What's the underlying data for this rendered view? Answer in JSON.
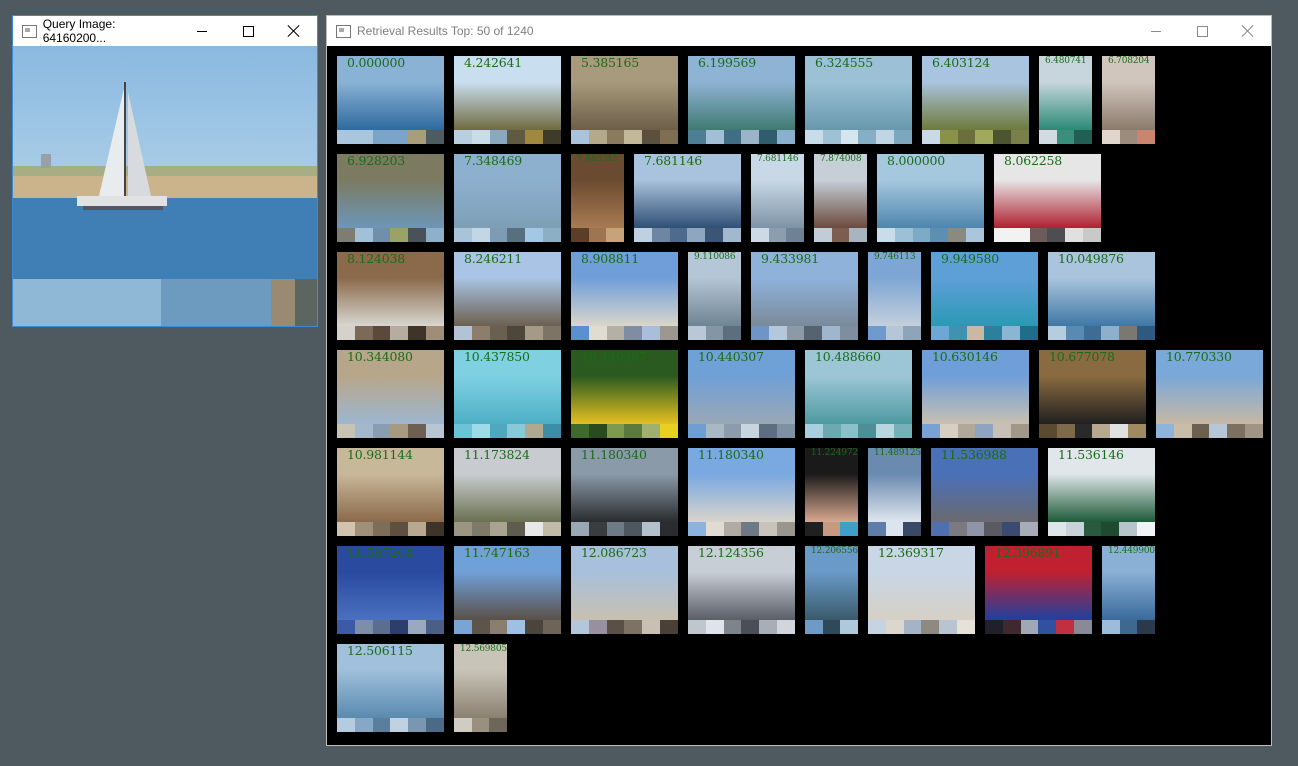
{
  "query_window": {
    "title": "Query Image: 64160200...",
    "palette": [
      "#8fb8d6",
      "#8fb8d6",
      "#8fb8d6",
      "#6d9bc0",
      "#6d9bc0",
      "#6d9bc0",
      "#9a8a72",
      "#5d6560"
    ]
  },
  "results_window": {
    "title": "Retrieval Results Top: 50 of 1240",
    "results": [
      {
        "score": "0.000000",
        "w": "wide",
        "colors": [
          "#8ab2d4",
          "#2e6aa0"
        ],
        "palette": [
          "#a9c6de",
          "#a9c6de",
          "#7aa5c9",
          "#7aa5c9",
          "#a89f7a",
          "#4d5b62"
        ]
      },
      {
        "score": "4.242641",
        "w": "wide",
        "colors": [
          "#c9dff0",
          "#6f6a40"
        ],
        "palette": [
          "#b7cfe0",
          "#c8dcea",
          "#89a9c1",
          "#5f5a42",
          "#a0883e",
          "#3e3b2a"
        ]
      },
      {
        "score": "5.385165",
        "w": "wide",
        "colors": [
          "#a89a7c",
          "#6c5e48"
        ],
        "palette": [
          "#a9c3da",
          "#b5a98c",
          "#8a7a5e",
          "#c4b89a",
          "#5b4f3d",
          "#7d6e54"
        ]
      },
      {
        "score": "6.199569",
        "w": "wide",
        "colors": [
          "#8fb3d4",
          "#3f7a72"
        ],
        "palette": [
          "#4d7e93",
          "#a2bfd6",
          "#3f6e85",
          "#9bb4c7",
          "#2f5d6e",
          "#8ab0d0"
        ]
      },
      {
        "score": "6.324555",
        "w": "wide",
        "colors": [
          "#9cc1d6",
          "#6898ad"
        ],
        "palette": [
          "#c8dde9",
          "#9fc1d5",
          "#d6e6ef",
          "#86aec6",
          "#c0d6e3",
          "#7da7bf"
        ]
      },
      {
        "score": "6.403124",
        "w": "wide",
        "colors": [
          "#a9c4de",
          "#6f7a3c"
        ],
        "palette": [
          "#c9d9e8",
          "#8a9148",
          "#6b6f3c",
          "#a1a95c",
          "#4d5530",
          "#7a804a"
        ]
      },
      {
        "score": "6.480741",
        "w": "narrow",
        "colors": [
          "#c7d6dc",
          "#2a8a77"
        ],
        "palette": [
          "#d0dce0",
          "#3a8f7c",
          "#215f55"
        ]
      },
      {
        "score": "6.708204",
        "w": "narrow",
        "colors": [
          "#d1c6bd",
          "#8a7a6c"
        ],
        "palette": [
          "#e0d6ce",
          "#9c8c7e",
          "#c9866d"
        ]
      },
      {
        "score": "6.928203",
        "w": "wide",
        "colors": [
          "#7c7a60",
          "#6d96b8"
        ],
        "palette": [
          "#7e7e70",
          "#a3c0d9",
          "#6f8fab",
          "#9aa268",
          "#4a5158",
          "#8fb0ca"
        ]
      },
      {
        "score": "7.348469",
        "w": "wide",
        "colors": [
          "#8eb0cf",
          "#7d9fb5"
        ],
        "palette": [
          "#a9c3d9",
          "#c2d6e5",
          "#7d9bb3",
          "#586f80",
          "#a3c7e4",
          "#8cafc6"
        ]
      },
      {
        "score": "7.483315",
        "w": "narrow",
        "colors": [
          "#6a4a30",
          "#a97a52"
        ],
        "palette": [
          "#5c3e28",
          "#9e7550",
          "#c7a37c"
        ]
      },
      {
        "score": "7.681146",
        "w": "wide",
        "colors": [
          "#a9c2dd",
          "#2f4f74"
        ],
        "palette": [
          "#bed0e2",
          "#6f86a2",
          "#4e6a8c",
          "#8fa6c1",
          "#3b5577",
          "#a3b8cf"
        ]
      },
      {
        "score": "7.681146",
        "w": "narrow",
        "colors": [
          "#c9d8e6",
          "#7d93a6"
        ],
        "palette": [
          "#ccd9e6",
          "#8c9eae",
          "#6d8294"
        ]
      },
      {
        "score": "7.874008",
        "w": "narrow",
        "colors": [
          "#c6cfd8",
          "#6b4a3e"
        ],
        "palette": [
          "#c0ccd6",
          "#7d5d4f",
          "#a8b5c0"
        ]
      },
      {
        "score": "8.000000",
        "w": "wide",
        "colors": [
          "#a6c8de",
          "#4e86ae"
        ],
        "palette": [
          "#c8dde9",
          "#9dc0d6",
          "#7daac6",
          "#5d8fb1",
          "#8a8a80",
          "#a9c6da"
        ]
      },
      {
        "score": "8.062258",
        "w": "wide",
        "colors": [
          "#e6e6e6",
          "#b02030"
        ],
        "palette": [
          "#f2f2f2",
          "#f2f2f2",
          "#6e5c5a",
          "#4e4e52",
          "#e0e0e0",
          "#c9c9c9"
        ]
      },
      {
        "score": "8.124038",
        "w": "wide",
        "colors": [
          "#8a6a4a",
          "#d8d6d0"
        ],
        "palette": [
          "#d5d2cc",
          "#7d6a56",
          "#5b4a3a",
          "#b6ada0",
          "#3e3429",
          "#9e8e78"
        ]
      },
      {
        "score": "8.246211",
        "w": "wide",
        "colors": [
          "#a9c4e4",
          "#6c6050"
        ],
        "palette": [
          "#b2c3d8",
          "#8c7e6a",
          "#6a604f",
          "#4d463c",
          "#a59a86",
          "#7d7466"
        ]
      },
      {
        "score": "8.908811",
        "w": "wide",
        "colors": [
          "#6f9ed9",
          "#dad6cc"
        ],
        "palette": [
          "#5b8fd0",
          "#e0dcd2",
          "#b5b0a6",
          "#7e8da4",
          "#a9bedc",
          "#9c9890"
        ]
      },
      {
        "score": "9.110086",
        "w": "narrow",
        "colors": [
          "#b5c6d6",
          "#6f8494"
        ],
        "palette": [
          "#b8c8d6",
          "#8396a6",
          "#5d6e7e"
        ]
      },
      {
        "score": "9.433981",
        "w": "wide",
        "colors": [
          "#8fb2db",
          "#7a8a9a"
        ],
        "palette": [
          "#6e94c8",
          "#b4c8dc",
          "#8c9aa8",
          "#556270",
          "#a0b6cc",
          "#7e8e9e"
        ]
      },
      {
        "score": "9.746113",
        "w": "narrow",
        "colors": [
          "#7ea6d4",
          "#c3cfdc"
        ],
        "palette": [
          "#6f9ad0",
          "#b6c6d8",
          "#8ea4b8"
        ]
      },
      {
        "score": "9.949580",
        "w": "wide",
        "colors": [
          "#5f9fd8",
          "#2a9ab4"
        ],
        "palette": [
          "#6ea6d6",
          "#3f93b0",
          "#c8b9a0",
          "#2d7f9e",
          "#8ab6d4",
          "#1f6d88"
        ]
      },
      {
        "score": "10.049876",
        "w": "wide",
        "colors": [
          "#a9c4dc",
          "#3f78a6"
        ],
        "palette": [
          "#b6cde0",
          "#5a8ab2",
          "#3e6c92",
          "#8fb0cc",
          "#7a7870",
          "#2e5a80"
        ]
      },
      {
        "score": "10.344080",
        "w": "wide",
        "colors": [
          "#b8a68a",
          "#9db6cf"
        ],
        "palette": [
          "#c9c3b5",
          "#a4b8cc",
          "#8a9eb2",
          "#a89a80",
          "#6d6050",
          "#b8c6d4"
        ]
      },
      {
        "score": "10.437850",
        "w": "wide",
        "colors": [
          "#7fd0e0",
          "#4eb0c6"
        ],
        "palette": [
          "#6cc3d6",
          "#9fdbe6",
          "#4ea9c0",
          "#88c8d8",
          "#b0a890",
          "#3a8ea6"
        ]
      },
      {
        "score": "10.440307",
        "w": "wide",
        "colors": [
          "#2a5a20",
          "#e6c020"
        ],
        "palette": [
          "#3e6a2e",
          "#2a4a20",
          "#7d9a50",
          "#5a7a3e",
          "#a0b070",
          "#e8d020"
        ]
      },
      {
        "score": "10.440307",
        "w": "wide",
        "colors": [
          "#6fa0d6",
          "#9aa8b6"
        ],
        "palette": [
          "#6f9ed4",
          "#aab8c6",
          "#8c9cac",
          "#c8d4e0",
          "#5d6e80",
          "#7e90a4"
        ]
      },
      {
        "score": "10.488660",
        "w": "wide",
        "colors": [
          "#9cc6d6",
          "#4e9aa0"
        ],
        "palette": [
          "#a9cedd",
          "#6aaab0",
          "#8ec0cc",
          "#4e8e96",
          "#b8d6e0",
          "#76b0b8"
        ]
      },
      {
        "score": "10.630146",
        "w": "wide",
        "colors": [
          "#6f9ed9",
          "#c8c0b0"
        ],
        "palette": [
          "#78a2d6",
          "#d6cfc2",
          "#b0a898",
          "#8ea4c0",
          "#c8c0b4",
          "#a09888"
        ]
      },
      {
        "score": "10.677078",
        "w": "wide",
        "colors": [
          "#8a6a40",
          "#202020"
        ],
        "palette": [
          "#5a4a30",
          "#7d6a4a",
          "#2a2a2a",
          "#b8a890",
          "#e0e0e0",
          "#a08a60"
        ]
      },
      {
        "score": "10.770330",
        "w": "wide",
        "colors": [
          "#7aa8d8",
          "#c6b8a4"
        ],
        "palette": [
          "#8eb4dc",
          "#c8bcaa",
          "#6d6050",
          "#b6c8d8",
          "#7e7060",
          "#a09484"
        ]
      },
      {
        "score": "10.981144",
        "w": "wide",
        "colors": [
          "#c8b89a",
          "#8a6a4a"
        ],
        "palette": [
          "#d0c4ae",
          "#a0907a",
          "#7d6e5a",
          "#5d5040",
          "#b8a890",
          "#3e3428"
        ]
      },
      {
        "score": "11.173824",
        "w": "wide",
        "colors": [
          "#c8ccd0",
          "#6a7050"
        ],
        "palette": [
          "#9a9682",
          "#7d7a68",
          "#a8a490",
          "#5e5c4e",
          "#e8e8e8",
          "#c0bca8"
        ]
      },
      {
        "score": "11.180340",
        "w": "wide",
        "colors": [
          "#8a9aa8",
          "#2a2c2e"
        ],
        "palette": [
          "#9aa8b4",
          "#3a3c40",
          "#6e7a86",
          "#4e5660",
          "#b4c0cc",
          "#2a2c30"
        ]
      },
      {
        "score": "11.180340",
        "w": "wide",
        "colors": [
          "#7aa8e0",
          "#d8d4cc"
        ],
        "palette": [
          "#8cb2e0",
          "#e0dcd4",
          "#b0aca4",
          "#6e7886",
          "#c8c4bc",
          "#9a968e"
        ]
      },
      {
        "score": "11.224972",
        "w": "narrow",
        "colors": [
          "#1a1a1a",
          "#d8a890"
        ],
        "palette": [
          "#202020",
          "#c89880",
          "#3ea0c8"
        ]
      },
      {
        "score": "11.489125",
        "w": "narrow",
        "colors": [
          "#6a8ab0",
          "#e0e6ee"
        ],
        "palette": [
          "#5d7ea8",
          "#dce4ee",
          "#3a4a66"
        ]
      },
      {
        "score": "11.536988",
        "w": "wide",
        "colors": [
          "#4a70b8",
          "#6a6a70"
        ],
        "palette": [
          "#4f6fb0",
          "#7a7a80",
          "#9094a8",
          "#5a5a62",
          "#3a4a70",
          "#a8acb8"
        ]
      },
      {
        "score": "11.536146",
        "w": "wide",
        "colors": [
          "#e0e6ea",
          "#1e5a38"
        ],
        "palette": [
          "#dfe6ea",
          "#c8d2d8",
          "#2a5a3e",
          "#1e4a30",
          "#b8c4cc",
          "#f0f4f6"
        ]
      },
      {
        "score": "11.587264",
        "w": "wide",
        "colors": [
          "#2a4aa0",
          "#4a70c0"
        ],
        "palette": [
          "#3c5aa8",
          "#7e8ea8",
          "#5a6e90",
          "#2e3e6a",
          "#9aa8c0",
          "#4a5e86"
        ]
      },
      {
        "score": "11.747163",
        "w": "wide",
        "colors": [
          "#6fa0d8",
          "#5a5048"
        ],
        "palette": [
          "#78a4d6",
          "#5d554c",
          "#8a7e70",
          "#9ec0e4",
          "#4a443c",
          "#6e6458"
        ]
      },
      {
        "score": "12.086723",
        "w": "wide",
        "colors": [
          "#a8c0dc",
          "#c8c0b0"
        ],
        "palette": [
          "#b4c6da",
          "#9890a0",
          "#5a5046",
          "#7e7264",
          "#c8c0b2",
          "#4a4038"
        ]
      },
      {
        "score": "12.124356",
        "w": "wide",
        "colors": [
          "#c8ced6",
          "#5a5e66"
        ],
        "palette": [
          "#c0c6ce",
          "#e0e4e8",
          "#7e848c",
          "#4a4e56",
          "#a8aeb6",
          "#d0d6dc"
        ]
      },
      {
        "score": "12.206556",
        "w": "narrow",
        "colors": [
          "#6a9ac8",
          "#3a5a6a"
        ],
        "palette": [
          "#6e9ac6",
          "#2e4a58",
          "#b0c8dc"
        ]
      },
      {
        "score": "12.369317",
        "w": "wide",
        "colors": [
          "#c8d6e6",
          "#d6d0c6"
        ],
        "palette": [
          "#c6d4e2",
          "#dcd6cc",
          "#a4b4c4",
          "#8e8a82",
          "#b8c4d0",
          "#e6e2da"
        ]
      },
      {
        "score": "12.396891",
        "w": "wide",
        "colors": [
          "#c02030",
          "#2040a0"
        ],
        "palette": [
          "#20202a",
          "#402830",
          "#a0a8b8",
          "#3050a0",
          "#c03040",
          "#8a8a96"
        ]
      },
      {
        "score": "12.449900",
        "w": "narrow",
        "colors": [
          "#8ab0d6",
          "#3a6a9a"
        ],
        "palette": [
          "#9cbcda",
          "#3e6890",
          "#2a3a4a"
        ]
      },
      {
        "score": "12.506115",
        "w": "wide",
        "colors": [
          "#a0c0dc",
          "#5a8aae"
        ],
        "palette": [
          "#b4cce0",
          "#86a8c6",
          "#5a7e9e",
          "#c0d2e2",
          "#7a96b0",
          "#4a6a88"
        ]
      },
      {
        "score": "12.569805",
        "w": "narrow",
        "colors": [
          "#c8c4b8",
          "#8a8070"
        ],
        "palette": [
          "#d0ccc2",
          "#9a9080",
          "#6e6658"
        ]
      }
    ]
  }
}
